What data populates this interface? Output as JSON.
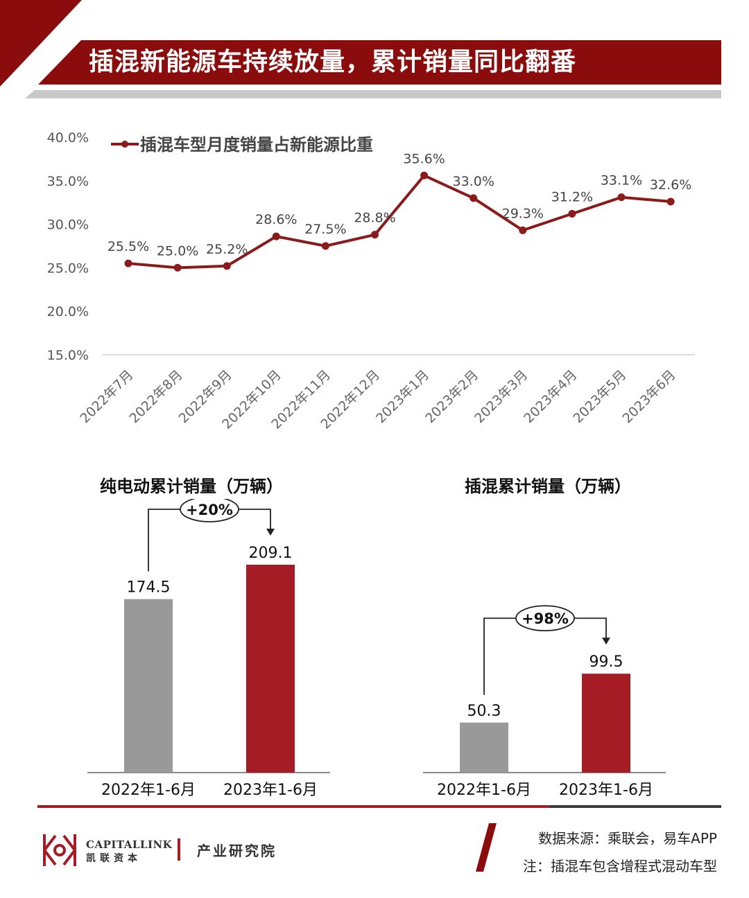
{
  "header": {
    "title": "插混新能源车持续放量，累计销量同比翻番"
  },
  "line_chart": {
    "legend_label": "插混车型月度销量占新能源比重",
    "y_ticks": [
      "40.0%",
      "35.0%",
      "30.0%",
      "25.0%",
      "20.0%",
      "15.0%"
    ],
    "x_labels": [
      "2022年7月",
      "2022年8月",
      "2022年9月",
      "2022年10月",
      "2022年11月",
      "2022年12月",
      "2023年1月",
      "2023年2月",
      "2023年3月",
      "2023年4月",
      "2023年5月",
      "2023年6月"
    ],
    "value_labels": [
      "25.5%",
      "25.0%",
      "25.2%",
      "28.6%",
      "27.5%",
      "28.8%",
      "35.6%",
      "33.0%",
      "29.3%",
      "31.2%",
      "33.1%",
      "32.6%"
    ]
  },
  "bar_chart_left": {
    "title": "纯电动累计销量（万辆）",
    "categories": [
      "2022年1-6月",
      "2023年1-6月"
    ],
    "value_labels": [
      "174.5",
      "209.1"
    ],
    "growth_label": "+20%"
  },
  "bar_chart_right": {
    "title": "插混累计销量（万辆）",
    "categories": [
      "2022年1-6月",
      "2023年1-6月"
    ],
    "value_labels": [
      "50.3",
      "99.5"
    ],
    "growth_label": "+98%"
  },
  "footer": {
    "logo_en": "CAPITALLINK",
    "logo_cn": "凯联资本",
    "institute": "产业研究院",
    "source": "数据来源：乘联会，易车APP",
    "note": "注：插混车包含增程式混动车型"
  },
  "colors": {
    "brand_red": "#8b0c0c",
    "line": "#8b1a1a",
    "bar_2022": "#999999",
    "bar_2023": "#a61c25"
  },
  "chart_data": [
    {
      "type": "line",
      "title": "",
      "series": [
        {
          "name": "插混车型月度销量占新能源比重",
          "values": [
            25.5,
            25.0,
            25.2,
            28.6,
            27.5,
            28.8,
            35.6,
            33.0,
            29.3,
            31.2,
            33.1,
            32.6
          ]
        }
      ],
      "categories": [
        "2022年7月",
        "2022年8月",
        "2022年9月",
        "2022年10月",
        "2022年11月",
        "2022年12月",
        "2023年1月",
        "2023年2月",
        "2023年3月",
        "2023年4月",
        "2023年5月",
        "2023年6月"
      ],
      "ylim": [
        15,
        40
      ],
      "y_unit": "%",
      "grid": false,
      "legend": "top-left"
    },
    {
      "type": "bar",
      "title": "纯电动累计销量（万辆）",
      "categories": [
        "2022年1-6月",
        "2023年1-6月"
      ],
      "values": [
        174.5,
        209.1
      ],
      "growth": "+20%"
    },
    {
      "type": "bar",
      "title": "插混累计销量（万辆）",
      "categories": [
        "2022年1-6月",
        "2023年1-6月"
      ],
      "values": [
        50.3,
        99.5
      ],
      "growth": "+98%"
    }
  ]
}
